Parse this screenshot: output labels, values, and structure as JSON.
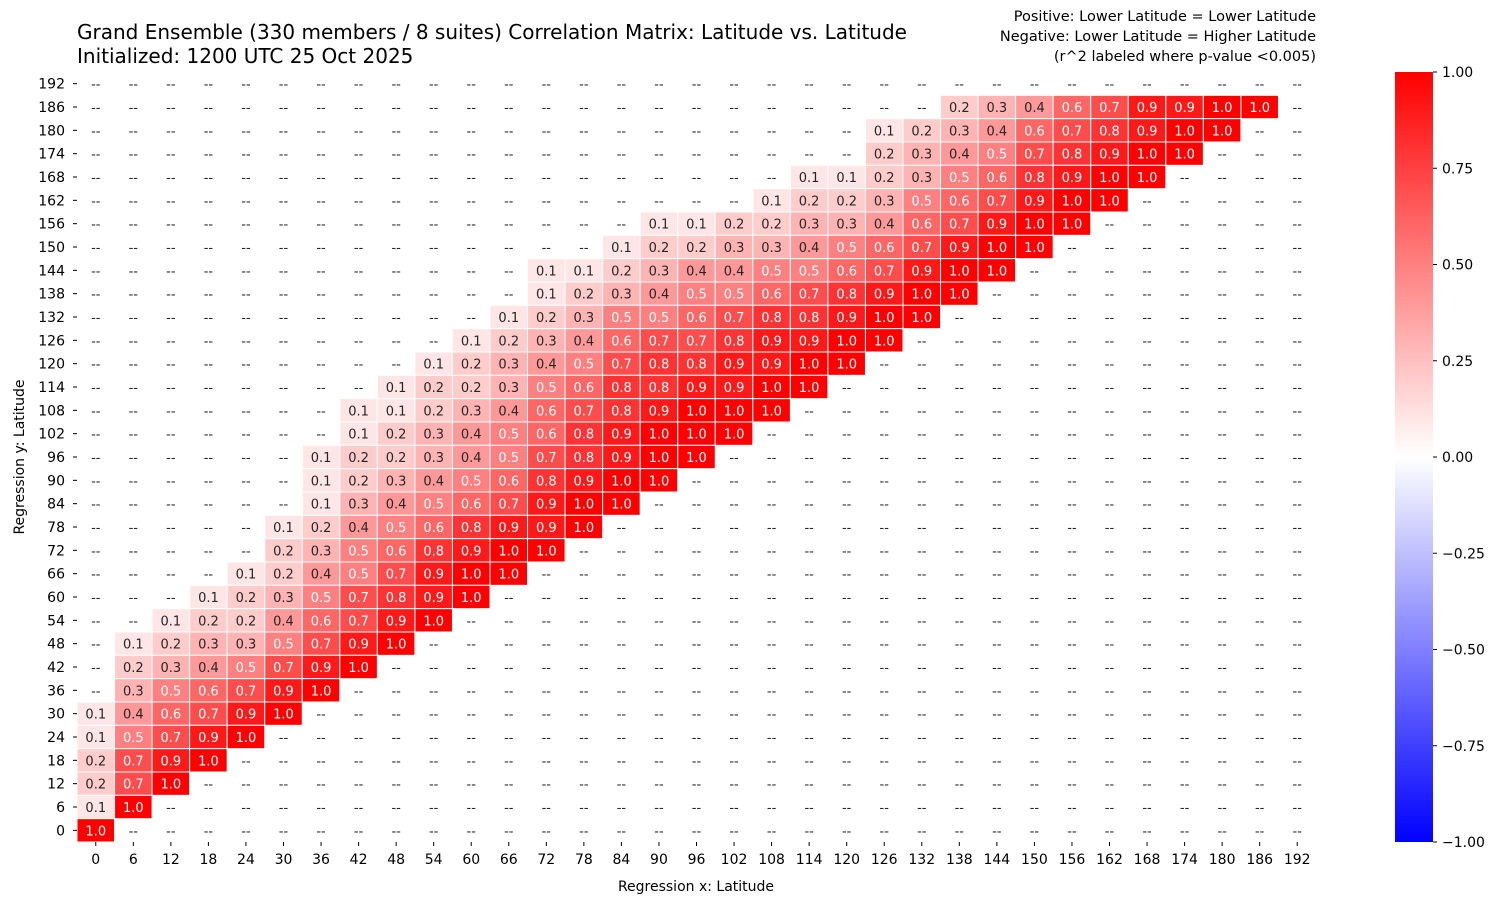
{
  "chart_data": {
    "type": "heatmap",
    "title_line1": "Grand Ensemble (330 members / 8 suites) Correlation Matrix: Latitude vs. Latitude",
    "title_line2": "Initialized: 1200 UTC 25 Oct 2025",
    "notes": [
      "Positive: Lower Latitude = Lower Latitude",
      "Negative: Lower Latitude = Higher Latitude",
      "(r^2 labeled where p-value <0.005)"
    ],
    "xlabel": "Regression x: Latitude",
    "ylabel": "Regression y: Latitude",
    "x_ticks": [
      0,
      6,
      12,
      18,
      24,
      30,
      36,
      42,
      48,
      54,
      60,
      66,
      72,
      78,
      84,
      90,
      96,
      102,
      108,
      114,
      120,
      126,
      132,
      138,
      144,
      150,
      156,
      162,
      168,
      174,
      180,
      186,
      192
    ],
    "y_ticks": [
      0,
      6,
      12,
      18,
      24,
      30,
      36,
      42,
      48,
      54,
      60,
      66,
      72,
      78,
      84,
      90,
      96,
      102,
      108,
      114,
      120,
      126,
      132,
      138,
      144,
      150,
      156,
      162,
      168,
      174,
      180,
      186,
      192
    ],
    "empty_label": "--",
    "colorbar": {
      "min": -1.0,
      "max": 1.0,
      "ticks": [
        "1.00",
        "0.75",
        "0.50",
        "0.25",
        "0.00",
        "−0.25",
        "−0.50",
        "−0.75",
        "−1.00"
      ],
      "colormap": "bwr"
    },
    "colors": {
      "positive": "#ff0000",
      "negative": "#0000ff",
      "zero": "#ffffff"
    },
    "rows": [
      {
        "y": 192,
        "x_start": 0,
        "values": []
      },
      {
        "y": 186,
        "x_start": 138,
        "values": [
          0.2,
          0.3,
          0.4,
          0.6,
          0.7,
          0.9,
          0.9,
          1.0,
          1.0
        ]
      },
      {
        "y": 180,
        "x_start": 126,
        "values": [
          0.1,
          0.2,
          0.3,
          0.4,
          0.6,
          0.7,
          0.8,
          0.9,
          1.0,
          1.0
        ]
      },
      {
        "y": 174,
        "x_start": 126,
        "values": [
          0.2,
          0.3,
          0.4,
          0.5,
          0.7,
          0.8,
          0.9,
          1.0,
          1.0
        ]
      },
      {
        "y": 168,
        "x_start": 114,
        "values": [
          0.1,
          0.1,
          0.2,
          0.3,
          0.5,
          0.6,
          0.8,
          0.9,
          1.0,
          1.0
        ]
      },
      {
        "y": 162,
        "x_start": 108,
        "values": [
          0.1,
          0.2,
          0.2,
          0.3,
          0.5,
          0.6,
          0.7,
          0.9,
          1.0,
          1.0
        ]
      },
      {
        "y": 156,
        "x_start": 90,
        "values": [
          0.1,
          0.1,
          0.2,
          0.2,
          0.3,
          0.3,
          0.4,
          0.6,
          0.7,
          0.9,
          1.0,
          1.0
        ]
      },
      {
        "y": 150,
        "x_start": 84,
        "values": [
          0.1,
          0.2,
          0.2,
          0.3,
          0.3,
          0.4,
          0.5,
          0.6,
          0.7,
          0.9,
          1.0,
          1.0
        ]
      },
      {
        "y": 144,
        "x_start": 72,
        "values": [
          0.1,
          0.1,
          0.2,
          0.3,
          0.4,
          0.4,
          0.5,
          0.5,
          0.6,
          0.7,
          0.9,
          1.0,
          1.0
        ]
      },
      {
        "y": 138,
        "x_start": 72,
        "values": [
          0.1,
          0.2,
          0.3,
          0.4,
          0.5,
          0.5,
          0.6,
          0.7,
          0.8,
          0.9,
          1.0,
          1.0
        ]
      },
      {
        "y": 132,
        "x_start": 66,
        "values": [
          0.1,
          0.2,
          0.3,
          0.5,
          0.5,
          0.6,
          0.7,
          0.8,
          0.8,
          0.9,
          1.0,
          1.0
        ]
      },
      {
        "y": 126,
        "x_start": 60,
        "values": [
          0.1,
          0.2,
          0.3,
          0.4,
          0.6,
          0.7,
          0.7,
          0.8,
          0.9,
          0.9,
          1.0,
          1.0
        ]
      },
      {
        "y": 120,
        "x_start": 54,
        "values": [
          0.1,
          0.2,
          0.3,
          0.4,
          0.5,
          0.7,
          0.8,
          0.8,
          0.9,
          0.9,
          1.0,
          1.0
        ]
      },
      {
        "y": 114,
        "x_start": 48,
        "values": [
          0.1,
          0.2,
          0.2,
          0.3,
          0.5,
          0.6,
          0.8,
          0.8,
          0.9,
          0.9,
          1.0,
          1.0
        ]
      },
      {
        "y": 108,
        "x_start": 42,
        "values": [
          0.1,
          0.1,
          0.2,
          0.3,
          0.4,
          0.6,
          0.7,
          0.8,
          0.9,
          1.0,
          1.0,
          1.0
        ]
      },
      {
        "y": 102,
        "x_start": 42,
        "values": [
          0.1,
          0.2,
          0.3,
          0.4,
          0.5,
          0.6,
          0.8,
          0.9,
          1.0,
          1.0,
          1.0
        ]
      },
      {
        "y": 96,
        "x_start": 36,
        "values": [
          0.1,
          0.2,
          0.2,
          0.3,
          0.4,
          0.5,
          0.7,
          0.8,
          0.9,
          1.0,
          1.0
        ]
      },
      {
        "y": 90,
        "x_start": 36,
        "values": [
          0.1,
          0.2,
          0.3,
          0.4,
          0.5,
          0.6,
          0.8,
          0.9,
          1.0,
          1.0
        ]
      },
      {
        "y": 84,
        "x_start": 36,
        "values": [
          0.1,
          0.3,
          0.4,
          0.5,
          0.6,
          0.7,
          0.9,
          1.0,
          1.0
        ]
      },
      {
        "y": 78,
        "x_start": 30,
        "values": [
          0.1,
          0.2,
          0.4,
          0.5,
          0.6,
          0.8,
          0.9,
          0.9,
          1.0
        ]
      },
      {
        "y": 72,
        "x_start": 30,
        "values": [
          0.2,
          0.3,
          0.5,
          0.6,
          0.8,
          0.9,
          1.0,
          1.0
        ]
      },
      {
        "y": 66,
        "x_start": 24,
        "values": [
          0.1,
          0.2,
          0.4,
          0.5,
          0.7,
          0.9,
          1.0,
          1.0
        ]
      },
      {
        "y": 60,
        "x_start": 18,
        "values": [
          0.1,
          0.2,
          0.3,
          0.5,
          0.7,
          0.8,
          0.9,
          1.0
        ]
      },
      {
        "y": 54,
        "x_start": 12,
        "values": [
          0.1,
          0.2,
          0.2,
          0.4,
          0.6,
          0.7,
          0.9,
          1.0
        ]
      },
      {
        "y": 48,
        "x_start": 6,
        "values": [
          0.1,
          0.2,
          0.3,
          0.3,
          0.5,
          0.7,
          0.9,
          1.0
        ]
      },
      {
        "y": 42,
        "x_start": 6,
        "values": [
          0.2,
          0.3,
          0.4,
          0.5,
          0.7,
          0.9,
          1.0
        ]
      },
      {
        "y": 36,
        "x_start": 6,
        "values": [
          0.3,
          0.5,
          0.6,
          0.7,
          0.9,
          1.0
        ]
      },
      {
        "y": 30,
        "x_start": 0,
        "values": [
          0.1,
          0.4,
          0.6,
          0.7,
          0.9,
          1.0
        ]
      },
      {
        "y": 24,
        "x_start": 0,
        "values": [
          0.1,
          0.5,
          0.7,
          0.9,
          1.0
        ]
      },
      {
        "y": 18,
        "x_start": 0,
        "values": [
          0.2,
          0.7,
          0.9,
          1.0
        ]
      },
      {
        "y": 12,
        "x_start": 0,
        "values": [
          0.2,
          0.7,
          1.0
        ]
      },
      {
        "y": 6,
        "x_start": 0,
        "values": [
          0.1,
          1.0
        ]
      },
      {
        "y": 0,
        "x_start": 0,
        "values": [
          1.0
        ]
      }
    ]
  }
}
